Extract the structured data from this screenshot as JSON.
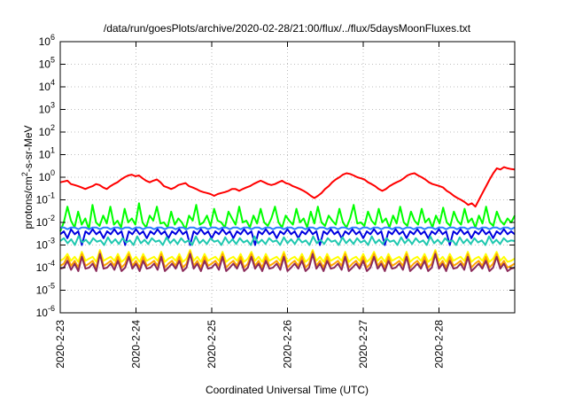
{
  "chart_data": {
    "type": "line",
    "title": "/data/run/goesPlots/archive/2020-02-28/21:00/flux/../flux/5daysMoonFluxes.txt",
    "xlabel": "Coordinated Universal Time (UTC)",
    "ylabel": "protons/cm²-s-sr-MeV",
    "ylabel_parts": {
      "prefix": "protons/cm",
      "sup": "2",
      "suffix": "-s-sr-MeV"
    },
    "y_scale": "log",
    "ylim": [
      1e-06,
      1000000.0
    ],
    "y_ticks": [
      {
        "base": "10",
        "exp": "-6"
      },
      {
        "base": "10",
        "exp": "-5"
      },
      {
        "base": "10",
        "exp": "-4"
      },
      {
        "base": "10",
        "exp": "-3"
      },
      {
        "base": "10",
        "exp": "-2"
      },
      {
        "base": "10",
        "exp": "-1"
      },
      {
        "base": "10",
        "exp": "0"
      },
      {
        "base": "10",
        "exp": "1"
      },
      {
        "base": "10",
        "exp": "2"
      },
      {
        "base": "10",
        "exp": "3"
      },
      {
        "base": "10",
        "exp": "4"
      },
      {
        "base": "10",
        "exp": "5"
      },
      {
        "base": "10",
        "exp": "6"
      }
    ],
    "xlim": [
      "2020-02-23",
      "2020-02-29"
    ],
    "x_tick_labels": [
      "2020-2-23",
      "2020-2-24",
      "2020-2-25",
      "2020-2-26",
      "2020-2-27",
      "2020-2-28"
    ],
    "grid": true,
    "series": [
      {
        "color": "#ff0000",
        "values": [
          0.6,
          0.65,
          0.7,
          0.5,
          0.45,
          0.4,
          0.35,
          0.3,
          0.35,
          0.4,
          0.5,
          0.45,
          0.35,
          0.3,
          0.4,
          0.5,
          0.6,
          0.8,
          1,
          1.2,
          1.3,
          1.1,
          1.2,
          0.9,
          0.7,
          0.6,
          0.7,
          0.8,
          0.6,
          0.4,
          0.35,
          0.3,
          0.35,
          0.45,
          0.5,
          0.55,
          0.4,
          0.35,
          0.3,
          0.25,
          0.22,
          0.2,
          0.18,
          0.15,
          0.18,
          0.2,
          0.22,
          0.25,
          0.3,
          0.3,
          0.25,
          0.3,
          0.35,
          0.4,
          0.5,
          0.6,
          0.7,
          0.6,
          0.5,
          0.45,
          0.5,
          0.6,
          0.7,
          0.55,
          0.5,
          0.4,
          0.35,
          0.3,
          0.25,
          0.2,
          0.15,
          0.12,
          0.15,
          0.2,
          0.3,
          0.4,
          0.6,
          0.8,
          1,
          1.3,
          1.5,
          1.4,
          1.2,
          1,
          0.9,
          0.8,
          0.6,
          0.5,
          0.4,
          0.3,
          0.25,
          0.3,
          0.4,
          0.5,
          0.6,
          0.7,
          0.9,
          1.2,
          1.4,
          1.5,
          1.2,
          1,
          0.8,
          0.6,
          0.5,
          0.45,
          0.4,
          0.35,
          0.25,
          0.2,
          0.15,
          0.12,
          0.1,
          0.08,
          0.06,
          0.07,
          0.05,
          0.1,
          0.2,
          0.4,
          0.8,
          1.5,
          2.5,
          2.2,
          2.8,
          2.5,
          2.3,
          2.2
        ]
      },
      {
        "color": "#00ff00",
        "values": [
          0.004,
          0.01,
          0.05,
          0.012,
          0.006,
          0.03,
          0.008,
          0.015,
          0.005,
          0.06,
          0.01,
          0.007,
          0.02,
          0.009,
          0.05,
          0.008,
          0.012,
          0.006,
          0.04,
          0.01,
          0.015,
          0.008,
          0.07,
          0.01,
          0.006,
          0.02,
          0.012,
          0.05,
          0.009,
          0.01,
          0.006,
          0.03,
          0.008,
          0.015,
          0.01,
          0.005,
          0.02,
          0.012,
          0.06,
          0.008,
          0.01,
          0.02,
          0.007,
          0.04,
          0.012,
          0.01,
          0.006,
          0.03,
          0.015,
          0.008,
          0.05,
          0.01,
          0.012,
          0.006,
          0.02,
          0.009,
          0.04,
          0.01,
          0.007,
          0.015,
          0.05,
          0.01,
          0.006,
          0.02,
          0.012,
          0.008,
          0.04,
          0.01,
          0.015,
          0.006,
          0.03,
          0.009,
          0.05,
          0.01,
          0.007,
          0.02,
          0.012,
          0.008,
          0.04,
          0.01,
          0.006,
          0.015,
          0.06,
          0.009,
          0.01,
          0.007,
          0.03,
          0.012,
          0.008,
          0.04,
          0.01,
          0.015,
          0.006,
          0.02,
          0.009,
          0.05,
          0.01,
          0.007,
          0.03,
          0.012,
          0.008,
          0.04,
          0.01,
          0.015,
          0.006,
          0.02,
          0.009,
          0.045,
          0.01,
          0.007,
          0.03,
          0.012,
          0.008,
          0.04,
          0.01,
          0.015,
          0.006,
          0.02,
          0.009,
          0.05,
          0.01,
          0.007,
          0.03,
          0.012,
          0.008,
          0.015,
          0.01,
          0.02
        ]
      },
      {
        "color": "#2f80ff",
        "values": [
          0.006,
          0.006,
          0.005,
          0.006,
          0.006,
          0.005,
          0.006,
          0.006,
          0.005,
          0.006,
          0.006,
          0.005,
          0.006,
          0.006,
          0.005,
          0.006,
          0.006,
          0.005,
          0.006,
          0.006,
          0.005,
          0.006,
          0.006,
          0.005,
          0.006,
          0.006,
          0.005,
          0.006,
          0.006,
          0.005,
          0.006,
          0.006,
          0.005,
          0.006,
          0.006,
          0.005,
          0.006,
          0.006,
          0.005,
          0.006,
          0.006,
          0.005,
          0.006,
          0.006,
          0.005,
          0.006,
          0.006,
          0.005,
          0.006,
          0.006,
          0.005,
          0.006,
          0.006,
          0.005,
          0.006,
          0.006,
          0.005,
          0.006,
          0.006,
          0.005,
          0.006,
          0.006,
          0.005,
          0.006,
          0.006,
          0.005,
          0.006,
          0.006,
          0.005,
          0.006,
          0.006,
          0.005,
          0.006,
          0.006,
          0.005,
          0.006,
          0.006,
          0.005,
          0.006,
          0.006,
          0.005,
          0.006,
          0.006,
          0.005,
          0.006,
          0.006,
          0.005,
          0.006,
          0.006,
          0.005,
          0.006,
          0.006,
          0.005,
          0.006,
          0.006,
          0.005,
          0.006,
          0.006,
          0.005,
          0.006,
          0.006,
          0.005,
          0.006,
          0.006,
          0.005,
          0.006,
          0.006,
          0.005,
          0.006,
          0.006,
          0.005,
          0.006,
          0.006,
          0.005,
          0.006,
          0.006,
          0.005,
          0.006,
          0.006,
          0.005,
          0.006,
          0.006,
          0.005,
          0.006,
          0.006,
          0.005,
          0.006
        ]
      },
      {
        "color": "#0000e0",
        "values": [
          0.003,
          0.004,
          0.002,
          0.005,
          0.003,
          0.004,
          0.001,
          0.004,
          0.003,
          0.005,
          0.003,
          0.004,
          0.002,
          0.004,
          0.003,
          0.005,
          0.003,
          0.004,
          0.001,
          0.004,
          0.003,
          0.005,
          0.003,
          0.004,
          0.002,
          0.004,
          0.003,
          0.005,
          0.003,
          0.004,
          0.002,
          0.004,
          0.003,
          0.005,
          0.003,
          0.004,
          0.001,
          0.004,
          0.003,
          0.005,
          0.003,
          0.004,
          0.002,
          0.004,
          0.003,
          0.005,
          0.003,
          0.004,
          0.002,
          0.004,
          0.003,
          0.005,
          0.003,
          0.004,
          0.001,
          0.004,
          0.003,
          0.005,
          0.003,
          0.004,
          0.002,
          0.004,
          0.003,
          0.005,
          0.003,
          0.004,
          0.002,
          0.004,
          0.003,
          0.005,
          0.003,
          0.004,
          0.001,
          0.004,
          0.003,
          0.005,
          0.003,
          0.004,
          0.002,
          0.004,
          0.003,
          0.005,
          0.003,
          0.004,
          0.002,
          0.004,
          0.003,
          0.005,
          0.003,
          0.004,
          0.001,
          0.004,
          0.003,
          0.005,
          0.003,
          0.004,
          0.002,
          0.004,
          0.003,
          0.005,
          0.003,
          0.004,
          0.002,
          0.004,
          0.003,
          0.005,
          0.003,
          0.004,
          0.001,
          0.004,
          0.003,
          0.005,
          0.003,
          0.004,
          0.002,
          0.004,
          0.003,
          0.005,
          0.003,
          0.004,
          0.002,
          0.004,
          0.003,
          0.005,
          0.003,
          0.004,
          0.003
        ]
      },
      {
        "color": "#20c8b0",
        "values": [
          0.0015,
          0.002,
          0.0012,
          0.0018,
          0.001,
          0.0025,
          0.0013,
          0.0017,
          0.0011,
          0.002,
          0.0014,
          0.0016,
          0.001,
          0.0022,
          0.0012,
          0.0018,
          0.0011,
          0.002,
          0.0013,
          0.0016,
          0.001,
          0.0024,
          0.0012,
          0.0017,
          0.0011,
          0.002,
          0.0014,
          0.0016,
          0.001,
          0.0022,
          0.0012,
          0.0018,
          0.0011,
          0.002,
          0.0013,
          0.0016,
          0.001,
          0.0024,
          0.0012,
          0.0017,
          0.0011,
          0.002,
          0.0014,
          0.0016,
          0.001,
          0.0022,
          0.0012,
          0.0018,
          0.0011,
          0.002,
          0.0013,
          0.0016,
          0.001,
          0.0024,
          0.0012,
          0.0017,
          0.0011,
          0.002,
          0.0014,
          0.0016,
          0.001,
          0.0022,
          0.0012,
          0.0018,
          0.0011,
          0.002,
          0.0013,
          0.0016,
          0.001,
          0.0024,
          0.0012,
          0.0017,
          0.0011,
          0.002,
          0.0014,
          0.0016,
          0.001,
          0.0022,
          0.0012,
          0.0018,
          0.0011,
          0.002,
          0.0013,
          0.0016,
          0.001,
          0.0024,
          0.0012,
          0.0017,
          0.0011,
          0.002,
          0.0014,
          0.0016,
          0.001,
          0.0022,
          0.0012,
          0.0018,
          0.0011,
          0.002,
          0.0013,
          0.0016,
          0.001,
          0.0024,
          0.0012,
          0.0017,
          0.0011,
          0.002,
          0.0014,
          0.0016,
          0.001,
          0.0022,
          0.0012,
          0.0018,
          0.0011,
          0.002,
          0.0013,
          0.0016,
          0.001,
          0.0024,
          0.0012,
          0.0017,
          0.0011,
          0.002,
          0.0014,
          0.0016,
          0.0015
        ]
      },
      {
        "color": "#ffff00",
        "values": [
          0.0002,
          0.00025,
          0.0004,
          0.0002,
          0.0003,
          0.00018,
          0.0005,
          0.0002,
          0.00025,
          0.0003,
          0.00018,
          0.0006,
          0.0002,
          0.00025,
          0.0003,
          0.0002,
          0.0004,
          0.00018,
          0.00025,
          0.0005,
          0.0002,
          0.0003,
          0.00018,
          0.0004,
          0.0002,
          0.00025,
          0.0003,
          0.0002,
          0.0005,
          0.00018,
          0.00025,
          0.0003,
          0.0002,
          0.0004,
          0.00018,
          0.00025,
          0.0006,
          0.0002,
          0.0003,
          0.00018,
          0.0004,
          0.0002,
          0.00025,
          0.0003,
          0.0002,
          0.0005,
          0.00018,
          0.00025,
          0.0003,
          0.0002,
          0.0004,
          0.00018,
          0.00025,
          0.0005,
          0.0002,
          0.0003,
          0.00018,
          0.0004,
          0.0002,
          0.00025,
          0.0003,
          0.0002,
          0.0005,
          0.00018,
          0.00025,
          0.0003,
          0.0002,
          0.0004,
          0.00018,
          0.00025,
          0.0006,
          0.0002,
          0.0003,
          0.00018,
          0.0004,
          0.0002,
          0.00025,
          0.0003,
          0.0002,
          0.0005,
          0.00018,
          0.00025,
          0.0003,
          0.0002,
          0.0004,
          0.00018,
          0.00025,
          0.0005,
          0.0002,
          0.0003,
          0.00018,
          0.0004,
          0.0002,
          0.00025,
          0.0003,
          0.0002,
          0.0005,
          0.00018,
          0.00025,
          0.0003,
          0.0002,
          0.0004,
          0.00018,
          0.00025,
          0.0006,
          0.0002,
          0.0003,
          0.00018,
          0.0004,
          0.0002,
          0.00025,
          0.0003,
          0.0002,
          0.0005,
          0.00018,
          0.00025,
          0.0003,
          0.0002,
          0.0004,
          0.00018,
          0.00025,
          0.0005,
          0.0002,
          0.0003,
          0.00018,
          0.0002,
          0.00025
        ]
      },
      {
        "color": "#ffa500",
        "values": [
          0.00012,
          0.00015,
          0.0003,
          0.00012,
          0.0002,
          0.0001,
          0.0004,
          0.00012,
          0.00015,
          0.0002,
          0.0001,
          0.0005,
          0.00012,
          0.00015,
          0.0002,
          0.00012,
          0.0003,
          0.0001,
          0.00015,
          0.0004,
          0.00012,
          0.0002,
          0.0001,
          0.0003,
          0.00012,
          0.00015,
          0.0002,
          0.00012,
          0.0004,
          0.0001,
          0.00015,
          0.0002,
          0.00012,
          0.0003,
          0.0001,
          0.00015,
          0.0005,
          0.00012,
          0.0002,
          0.0001,
          0.0003,
          0.00012,
          0.00015,
          0.0002,
          0.00012,
          0.0004,
          0.0001,
          0.00015,
          0.0002,
          0.00012,
          0.0003,
          0.0001,
          0.00015,
          0.0004,
          0.00012,
          0.0002,
          0.0001,
          0.0003,
          0.00012,
          0.00015,
          0.0002,
          0.00012,
          0.0004,
          0.0001,
          0.00015,
          0.0002,
          0.00012,
          0.0003,
          0.0001,
          0.00015,
          0.0005,
          0.00012,
          0.0002,
          0.0001,
          0.0003,
          0.00012,
          0.00015,
          0.0002,
          0.00012,
          0.0004,
          0.0001,
          0.00015,
          0.0002,
          0.00012,
          0.0003,
          0.0001,
          0.00015,
          0.0004,
          0.00012,
          0.0002,
          0.0001,
          0.0003,
          0.00012,
          0.00015,
          0.0002,
          0.00012,
          0.0004,
          0.0001,
          0.00015,
          0.0002,
          0.00012,
          0.0003,
          0.0001,
          0.00015,
          0.0005,
          0.00012,
          0.0002,
          0.0001,
          0.0003,
          0.00012,
          0.00015,
          0.0002,
          0.00012,
          0.0004,
          0.0001,
          0.00015,
          0.0002,
          0.00012,
          0.0003,
          0.0001,
          0.00015,
          0.0004,
          0.00012,
          0.0002,
          0.0001,
          0.00012,
          0.00015
        ]
      },
      {
        "color": "#8b2a5a",
        "values": [
          9e-05,
          0.0001,
          0.0002,
          8e-05,
          0.00015,
          7e-05,
          0.0003,
          9e-05,
          0.0001,
          0.00015,
          7e-05,
          0.0004,
          9e-05,
          0.0001,
          0.00015,
          8e-05,
          0.0002,
          7e-05,
          0.0001,
          0.0003,
          9e-05,
          0.00015,
          7e-05,
          0.0002,
          9e-05,
          0.0001,
          0.00015,
          8e-05,
          0.0003,
          7e-05,
          0.0001,
          0.00015,
          9e-05,
          0.0002,
          7e-05,
          0.0001,
          0.0004,
          9e-05,
          0.00015,
          7e-05,
          0.0002,
          9e-05,
          0.0001,
          0.00015,
          8e-05,
          0.0003,
          7e-05,
          0.0001,
          0.00015,
          9e-05,
          0.0002,
          7e-05,
          0.0001,
          0.0003,
          9e-05,
          0.00015,
          7e-05,
          0.0002,
          9e-05,
          0.0001,
          0.00015,
          8e-05,
          0.0003,
          7e-05,
          0.0001,
          0.00015,
          9e-05,
          0.0002,
          7e-05,
          0.0001,
          0.0004,
          9e-05,
          0.00015,
          7e-05,
          0.0002,
          9e-05,
          0.0001,
          0.00015,
          8e-05,
          0.0003,
          7e-05,
          0.0001,
          0.00015,
          9e-05,
          0.0002,
          7e-05,
          0.0001,
          0.0003,
          9e-05,
          0.00015,
          7e-05,
          0.0002,
          9e-05,
          0.0001,
          0.00015,
          8e-05,
          0.0003,
          7e-05,
          0.0001,
          0.00015,
          9e-05,
          0.0002,
          7e-05,
          0.0001,
          0.0004,
          9e-05,
          0.00015,
          7e-05,
          0.0002,
          9e-05,
          0.0001,
          0.00015,
          8e-05,
          0.0003,
          7e-05,
          0.0001,
          0.00015,
          9e-05,
          0.0002,
          7e-05,
          0.0001,
          0.0003,
          9e-05,
          0.00015,
          7e-05,
          9e-05,
          0.0001
        ]
      }
    ]
  }
}
